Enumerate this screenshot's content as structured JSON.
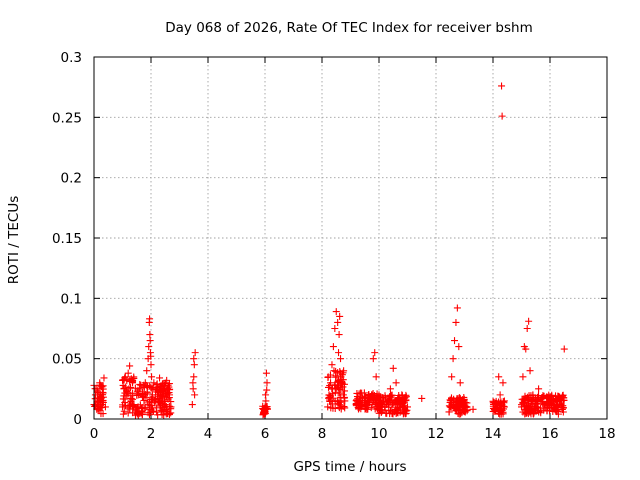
{
  "chart_data": {
    "type": "scatter",
    "title": "Day 068 of 2026, Rate Of TEC Index for receiver bshm",
    "xlabel": "GPS time / hours",
    "ylabel": "ROTI / TECUs",
    "xlim": [
      0,
      18
    ],
    "ylim": [
      0,
      0.3
    ],
    "x_ticks": [
      0,
      2,
      4,
      6,
      8,
      10,
      12,
      14,
      16,
      18
    ],
    "x_tick_labels": [
      "0",
      "2",
      "4",
      "6",
      "8",
      "10",
      "12",
      "14",
      "16",
      "18"
    ],
    "y_ticks": [
      0,
      0.05,
      0.1,
      0.15,
      0.2,
      0.25,
      0.3
    ],
    "y_tick_labels": [
      "0",
      "0.05",
      "0.1",
      "0.15",
      "0.2",
      "0.25",
      "0.3"
    ],
    "grid": true,
    "marker": "+",
    "marker_color": "#ff0000",
    "series": [
      {
        "name": "ROTI",
        "points": [
          [
            0.0,
            0.012
          ],
          [
            0.05,
            0.02
          ],
          [
            0.1,
            0.025
          ],
          [
            0.15,
            0.015
          ],
          [
            0.2,
            0.03
          ],
          [
            0.25,
            0.018
          ],
          [
            0.3,
            0.022
          ],
          [
            0.35,
            0.034
          ],
          [
            0.4,
            0.01
          ],
          [
            0.1,
            0.008
          ],
          [
            0.2,
            0.028
          ],
          [
            0.3,
            0.014
          ],
          [
            1.0,
            0.01
          ],
          [
            1.05,
            0.025
          ],
          [
            1.1,
            0.035
          ],
          [
            1.15,
            0.02
          ],
          [
            1.2,
            0.038
          ],
          [
            1.25,
            0.044
          ],
          [
            1.3,
            0.015
          ],
          [
            1.35,
            0.03
          ],
          [
            1.4,
            0.012
          ],
          [
            1.5,
            0.02
          ],
          [
            1.6,
            0.025
          ],
          [
            1.7,
            0.018
          ],
          [
            1.8,
            0.03
          ],
          [
            1.85,
            0.04
          ],
          [
            1.9,
            0.05
          ],
          [
            1.92,
            0.06
          ],
          [
            1.94,
            0.08
          ],
          [
            1.95,
            0.083
          ],
          [
            1.96,
            0.07
          ],
          [
            1.98,
            0.055
          ],
          [
            2.0,
            0.045
          ],
          [
            2.02,
            0.035
          ],
          [
            1.97,
            0.065
          ],
          [
            1.99,
            0.052
          ],
          [
            2.05,
            0.02
          ],
          [
            2.1,
            0.03
          ],
          [
            2.15,
            0.015
          ],
          [
            2.2,
            0.025
          ],
          [
            2.3,
            0.034
          ],
          [
            2.4,
            0.018
          ],
          [
            2.5,
            0.012
          ],
          [
            2.6,
            0.028
          ],
          [
            2.65,
            0.02
          ],
          [
            2.7,
            0.01
          ],
          [
            2.55,
            0.032
          ],
          [
            2.35,
            0.022
          ],
          [
            3.45,
            0.012
          ],
          [
            3.48,
            0.025
          ],
          [
            3.5,
            0.035
          ],
          [
            3.52,
            0.045
          ],
          [
            3.55,
            0.055
          ],
          [
            3.5,
            0.05
          ],
          [
            3.47,
            0.03
          ],
          [
            3.53,
            0.02
          ],
          [
            5.95,
            0.005
          ],
          [
            6.0,
            0.01
          ],
          [
            6.02,
            0.02
          ],
          [
            6.05,
            0.038
          ],
          [
            6.07,
            0.03
          ],
          [
            6.03,
            0.015
          ],
          [
            5.98,
            0.008
          ],
          [
            6.06,
            0.024
          ],
          [
            8.2,
            0.01
          ],
          [
            8.25,
            0.02
          ],
          [
            8.3,
            0.03
          ],
          [
            8.35,
            0.045
          ],
          [
            8.4,
            0.06
          ],
          [
            8.45,
            0.075
          ],
          [
            8.5,
            0.089
          ],
          [
            8.55,
            0.08
          ],
          [
            8.6,
            0.07
          ],
          [
            8.62,
            0.085
          ],
          [
            8.65,
            0.05
          ],
          [
            8.7,
            0.03
          ],
          [
            8.75,
            0.02
          ],
          [
            8.8,
            0.015
          ],
          [
            8.42,
            0.04
          ],
          [
            8.58,
            0.055
          ],
          [
            9.2,
            0.012
          ],
          [
            9.4,
            0.018
          ],
          [
            9.6,
            0.015
          ],
          [
            9.8,
            0.05
          ],
          [
            9.85,
            0.055
          ],
          [
            9.9,
            0.035
          ],
          [
            10.0,
            0.02
          ],
          [
            10.2,
            0.01
          ],
          [
            10.4,
            0.025
          ],
          [
            10.5,
            0.042
          ],
          [
            10.6,
            0.03
          ],
          [
            10.7,
            0.015
          ],
          [
            10.8,
            0.02
          ],
          [
            11.0,
            0.01
          ],
          [
            11.5,
            0.017
          ],
          [
            12.5,
            0.01
          ],
          [
            12.55,
            0.035
          ],
          [
            12.6,
            0.05
          ],
          [
            12.65,
            0.065
          ],
          [
            12.7,
            0.08
          ],
          [
            12.75,
            0.092
          ],
          [
            12.8,
            0.06
          ],
          [
            12.85,
            0.03
          ],
          [
            12.9,
            0.015
          ],
          [
            13.0,
            0.01
          ],
          [
            13.3,
            0.008
          ],
          [
            14.1,
            0.012
          ],
          [
            14.2,
            0.035
          ],
          [
            14.25,
            0.02
          ],
          [
            14.3,
            0.276
          ],
          [
            14.32,
            0.251
          ],
          [
            14.35,
            0.03
          ],
          [
            14.4,
            0.01
          ],
          [
            15.0,
            0.01
          ],
          [
            15.05,
            0.035
          ],
          [
            15.1,
            0.06
          ],
          [
            15.15,
            0.058
          ],
          [
            15.2,
            0.075
          ],
          [
            15.25,
            0.081
          ],
          [
            15.3,
            0.04
          ],
          [
            15.4,
            0.02
          ],
          [
            15.5,
            0.015
          ],
          [
            15.6,
            0.025
          ],
          [
            15.8,
            0.012
          ],
          [
            16.0,
            0.018
          ],
          [
            16.2,
            0.01
          ],
          [
            16.4,
            0.015
          ],
          [
            16.5,
            0.058
          ]
        ],
        "bands": [
          {
            "x": [
              0.0,
              0.35
            ],
            "y": [
              0.003,
              0.03
            ]
          },
          {
            "x": [
              1.0,
              1.4
            ],
            "y": [
              0.004,
              0.035
            ]
          },
          {
            "x": [
              1.45,
              2.7
            ],
            "y": [
              0.003,
              0.03
            ]
          },
          {
            "x": [
              5.9,
              6.1
            ],
            "y": [
              0.003,
              0.012
            ]
          },
          {
            "x": [
              8.2,
              8.8
            ],
            "y": [
              0.008,
              0.04
            ]
          },
          {
            "x": [
              9.2,
              10.0
            ],
            "y": [
              0.008,
              0.022
            ]
          },
          {
            "x": [
              10.0,
              11.0
            ],
            "y": [
              0.004,
              0.02
            ]
          },
          {
            "x": [
              12.45,
              13.1
            ],
            "y": [
              0.004,
              0.018
            ]
          },
          {
            "x": [
              14.0,
              14.4
            ],
            "y": [
              0.004,
              0.015
            ]
          },
          {
            "x": [
              15.0,
              16.5
            ],
            "y": [
              0.004,
              0.02
            ]
          }
        ]
      }
    ]
  }
}
